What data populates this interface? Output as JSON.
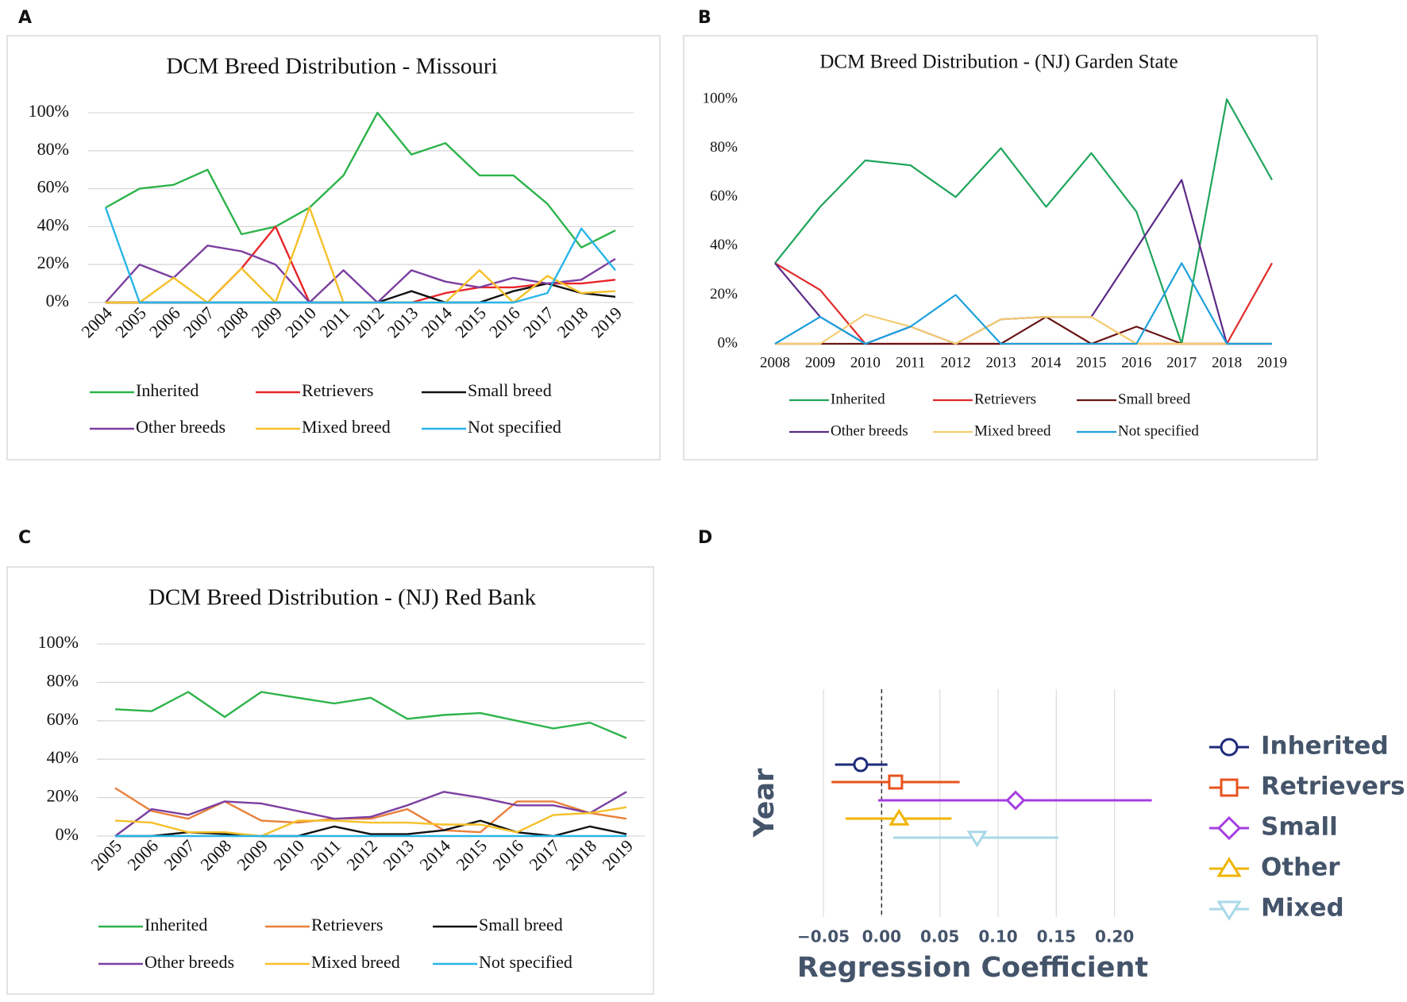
{
  "chart_data": [
    {
      "panel": "A",
      "type": "line",
      "title": "DCM Breed Distribution - Missouri",
      "categories": [
        "2004",
        "2005",
        "2006",
        "2007",
        "2008",
        "2009",
        "2010",
        "2011",
        "2012",
        "2013",
        "2014",
        "2015",
        "2016",
        "2017",
        "2018",
        "2019"
      ],
      "ylim": [
        0,
        100
      ],
      "yticks": [
        {
          "value": 0,
          "label": "0%"
        },
        {
          "value": 20,
          "label": "20%"
        },
        {
          "value": 40,
          "label": "40%"
        },
        {
          "value": 60,
          "label": "60%"
        },
        {
          "value": 80,
          "label": "80%"
        },
        {
          "value": 100,
          "label": "100%"
        }
      ],
      "grid": true,
      "series": [
        {
          "name": "Inherited",
          "color": "#2db34a",
          "values": [
            50,
            60,
            62,
            70,
            36,
            40,
            50,
            67,
            100,
            78,
            84,
            67,
            67,
            52,
            29,
            38
          ]
        },
        {
          "name": "Retrievers",
          "color": "#e8262a",
          "values": [
            0,
            0,
            0,
            0,
            18,
            40,
            0,
            0,
            0,
            0,
            5,
            8,
            8,
            10,
            10,
            12
          ]
        },
        {
          "name": "Small breed",
          "color": "#111111",
          "values": [
            0,
            0,
            0,
            0,
            0,
            0,
            0,
            0,
            0,
            6,
            0,
            0,
            6,
            10,
            5,
            3
          ]
        },
        {
          "name": "Other breeds",
          "color": "#7b3fa0",
          "values": [
            0,
            20,
            13,
            30,
            27,
            20,
            0,
            17,
            0,
            17,
            11,
            8,
            13,
            10,
            12,
            23
          ]
        },
        {
          "name": "Mixed breed",
          "color": "#f5c02a",
          "values": [
            0,
            0,
            13,
            0,
            18,
            0,
            50,
            0,
            0,
            0,
            0,
            17,
            0,
            14,
            5,
            6
          ]
        },
        {
          "name": "Not specified",
          "color": "#29b5e8",
          "values": [
            50,
            0,
            0,
            0,
            0,
            0,
            0,
            0,
            0,
            0,
            0,
            0,
            0,
            5,
            39,
            17
          ]
        }
      ]
    },
    {
      "panel": "B",
      "type": "line",
      "title": "DCM Breed Distribution - (NJ) Garden State",
      "categories": [
        "2008",
        "2009",
        "2010",
        "2011",
        "2012",
        "2013",
        "2014",
        "2015",
        "2016",
        "2017",
        "2018",
        "2019"
      ],
      "ylim": [
        0,
        100
      ],
      "yticks": [
        {
          "value": 0,
          "label": "0%"
        },
        {
          "value": 20,
          "label": "20%"
        },
        {
          "value": 40,
          "label": "40%"
        },
        {
          "value": 60,
          "label": "60%"
        },
        {
          "value": 80,
          "label": "80%"
        },
        {
          "value": 100,
          "label": "100%"
        }
      ],
      "grid": false,
      "series": [
        {
          "name": "Inherited",
          "color": "#1fa55a",
          "values": [
            33,
            56,
            75,
            73,
            60,
            80,
            56,
            78,
            54,
            0,
            100,
            67
          ]
        },
        {
          "name": "Retrievers",
          "color": "#e02a2a",
          "values": [
            33,
            22,
            0,
            0,
            0,
            0,
            0,
            0,
            0,
            0,
            0,
            33
          ]
        },
        {
          "name": "Small breed",
          "color": "#6b1414",
          "values": [
            0,
            0,
            0,
            0,
            0,
            0,
            11,
            0,
            7,
            0,
            0,
            0
          ]
        },
        {
          "name": "Other breeds",
          "color": "#5b2a86",
          "values": [
            33,
            11,
            0,
            7,
            0,
            10,
            11,
            11,
            39,
            67,
            0,
            0
          ]
        },
        {
          "name": "Mixed breed",
          "color": "#f5cc70",
          "values": [
            0,
            0,
            12,
            7,
            0,
            10,
            11,
            11,
            0,
            0,
            0,
            0
          ]
        },
        {
          "name": "Not specified",
          "color": "#1ea0dc",
          "values": [
            0,
            11,
            0,
            7,
            20,
            0,
            0,
            0,
            0,
            33,
            0,
            0
          ]
        }
      ]
    },
    {
      "panel": "C",
      "type": "line",
      "title": "DCM Breed Distribution - (NJ) Red Bank",
      "categories": [
        "2005",
        "2006",
        "2007",
        "2008",
        "2009",
        "2010",
        "2011",
        "2012",
        "2013",
        "2014",
        "2015",
        "2016",
        "2017",
        "2018",
        "2019"
      ],
      "ylim": [
        0,
        100
      ],
      "yticks": [
        {
          "value": 0,
          "label": "0%"
        },
        {
          "value": 20,
          "label": "20%"
        },
        {
          "value": 40,
          "label": "40%"
        },
        {
          "value": 60,
          "label": "60%"
        },
        {
          "value": 80,
          "label": "80%"
        },
        {
          "value": 100,
          "label": "100%"
        }
      ],
      "grid": true,
      "series": [
        {
          "name": "Inherited",
          "color": "#2db34a",
          "values": [
            66,
            65,
            75,
            62,
            75,
            72,
            69,
            72,
            61,
            63,
            64,
            60,
            56,
            59,
            51
          ]
        },
        {
          "name": "Retrievers",
          "color": "#e8803a",
          "values": [
            25,
            13,
            9,
            18,
            8,
            7,
            9,
            9,
            14,
            3,
            2,
            18,
            18,
            12,
            9
          ]
        },
        {
          "name": "Small breed",
          "color": "#111111",
          "values": [
            0,
            0,
            2,
            1,
            0,
            0,
            5,
            1,
            1,
            3,
            8,
            2,
            0,
            5,
            1
          ]
        },
        {
          "name": "Other breeds",
          "color": "#7b3fa0",
          "values": [
            0,
            14,
            11,
            18,
            17,
            13,
            9,
            10,
            16,
            23,
            20,
            16,
            16,
            12,
            23
          ]
        },
        {
          "name": "Mixed breed",
          "color": "#f5c02a",
          "values": [
            8,
            7,
            2,
            2,
            0,
            8,
            8,
            7,
            7,
            6,
            6,
            2,
            11,
            12,
            15
          ]
        },
        {
          "name": "Not specified",
          "color": "#29b5e8",
          "values": [
            0,
            0,
            0,
            0,
            0,
            0,
            0,
            0,
            0,
            0,
            0,
            0,
            0,
            0,
            0
          ]
        }
      ]
    },
    {
      "panel": "D",
      "type": "forest",
      "xlabel": "Regression Coefficient",
      "ylabel": "Year",
      "xlim": [
        -0.065,
        0.235
      ],
      "xticks": [
        {
          "value": -0.05,
          "label": "−0.05"
        },
        {
          "value": 0,
          "label": "0.00"
        },
        0.05,
        {
          "value": 0.1,
          "label": "0.10"
        },
        0.15,
        {
          "value": 0.2,
          "label": "0.20"
        }
      ],
      "reference_x": 0,
      "grid": true,
      "series": [
        {
          "name": "Inherited",
          "color": "#1f2a7a",
          "marker": "circle",
          "value": -0.018,
          "ci": [
            -0.04,
            0.005
          ]
        },
        {
          "name": "Retrievers",
          "color": "#e8531e",
          "marker": "square",
          "value": 0.012,
          "ci": [
            -0.043,
            0.067
          ]
        },
        {
          "name": "Small",
          "color": "#a53ee0",
          "marker": "diamond",
          "value": 0.115,
          "ci": [
            -0.003,
            0.232
          ]
        },
        {
          "name": "Other",
          "color": "#f0b400",
          "marker": "triangle-up",
          "value": 0.015,
          "ci": [
            -0.031,
            0.06
          ]
        },
        {
          "name": "Mixed",
          "color": "#a8d8e8",
          "marker": "triangle-down",
          "value": 0.082,
          "ci": [
            0.01,
            0.152
          ]
        }
      ]
    }
  ]
}
